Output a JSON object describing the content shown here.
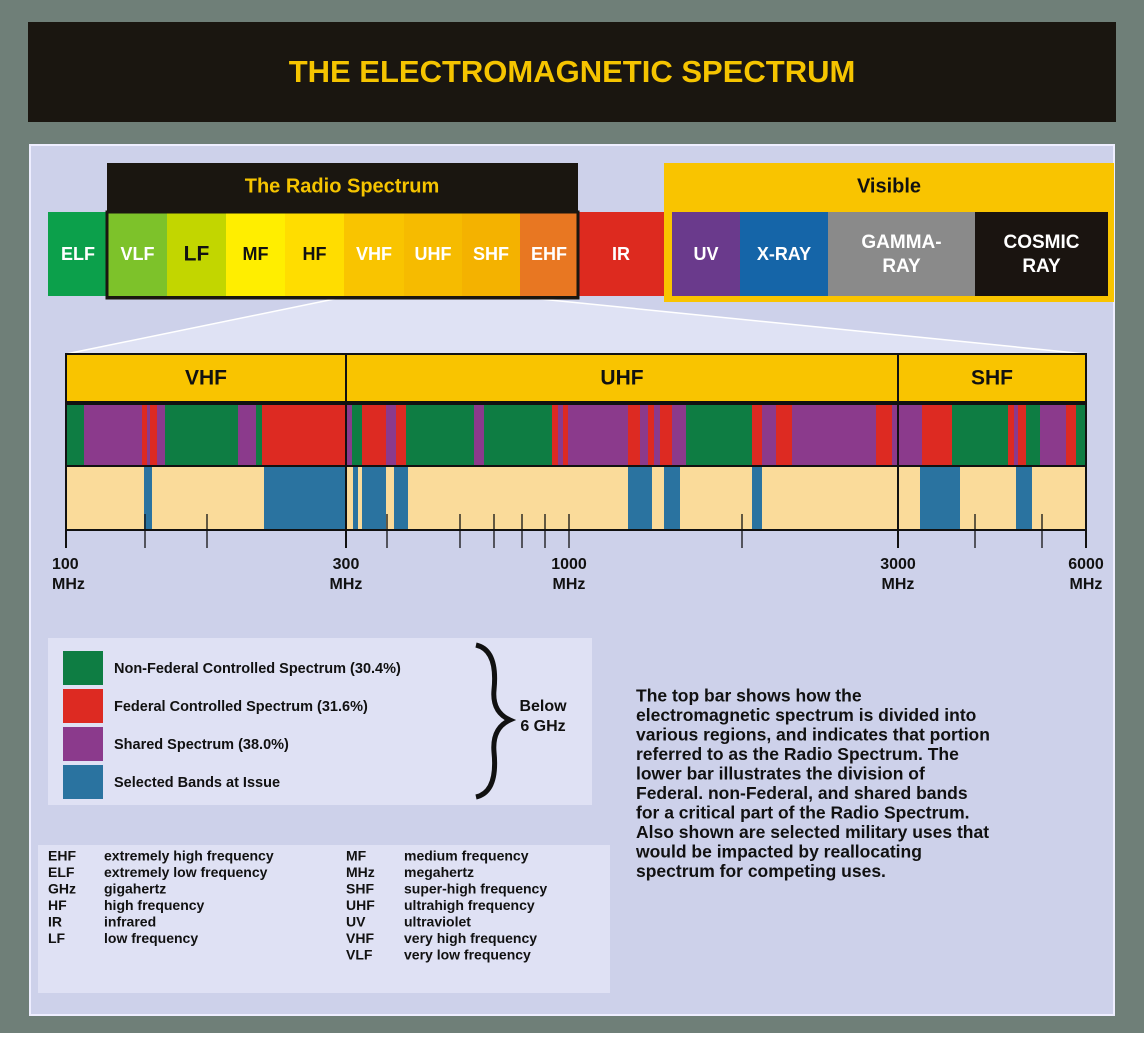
{
  "title": "THE ELECTROMAGNETIC SPECTRUM",
  "radio_label": "The Radio Spectrum",
  "visible_label": "Visible",
  "top_bands": [
    {
      "label": "ELF",
      "color": "#0ca04b"
    },
    {
      "label": "VLF",
      "color": "#7dc22a"
    },
    {
      "label": "LF",
      "color": "#c2d600"
    },
    {
      "label": "MF",
      "color": "#ffee00"
    },
    {
      "label": "HF",
      "color": "#ffdd00"
    },
    {
      "label": "VHF",
      "color": "#f9c400"
    },
    {
      "label": "UHF",
      "color": "#f6bb00"
    },
    {
      "label": "SHF",
      "color": "#f4b200"
    },
    {
      "label": "EHF",
      "color": "#e87722"
    },
    {
      "label": "IR",
      "color": "#dd2a1f"
    },
    {
      "label": "UV",
      "color": "#6a3a8c"
    },
    {
      "label": "X-RAY",
      "color": "#1565a8"
    },
    {
      "label": "GAMMA-RAY",
      "color": "#8a8a8a"
    },
    {
      "label": "COSMIC RAY",
      "color": "#1a1410"
    }
  ],
  "detail_bands": [
    "VHF",
    "UHF",
    "SHF"
  ],
  "axis_labels": [
    [
      "100",
      "MHz"
    ],
    [
      "300",
      "MHz"
    ],
    [
      "1000",
      "MHz"
    ],
    [
      "3000",
      "MHz"
    ],
    [
      "6000",
      "MHz"
    ]
  ],
  "legend": [
    {
      "label": "Non-Federal Controlled Spectrum (30.4%)",
      "color": "#0e7d43"
    },
    {
      "label": "Federal Controlled Spectrum (31.6%)",
      "color": "#dd2a22"
    },
    {
      "label": "Shared Spectrum (38.0%)",
      "color": "#8b3a8c"
    },
    {
      "label": "Selected Bands at Issue",
      "color": "#2a73a0"
    }
  ],
  "brace_label": [
    "Below",
    "6 GHz"
  ],
  "abbreviations": [
    [
      "EHF",
      "extremely high frequency"
    ],
    [
      "ELF",
      "extremely low frequency"
    ],
    [
      "GHz",
      "gigahertz"
    ],
    [
      "HF",
      "high frequency"
    ],
    [
      "IR",
      "infrared"
    ],
    [
      "LF",
      "low frequency"
    ],
    [
      "MF",
      "medium frequency"
    ],
    [
      "MHz",
      "megahertz"
    ],
    [
      "SHF",
      "super-high frequency"
    ],
    [
      "UHF",
      "ultrahigh frequency"
    ],
    [
      "UV",
      "ultraviolet"
    ],
    [
      "VHF",
      "very high frequency"
    ],
    [
      "VLF",
      "very low frequency"
    ]
  ],
  "description": [
    "The top bar shows how the",
    "electromagnetic spectrum is divided into",
    "various regions, and indicates that portion",
    "referred to as the Radio Spectrum.  The",
    "lower bar illustrates the division of",
    "Federal. non-Federal, and shared bands",
    "for a critical part of the Radio Spectrum.",
    "Also shown are selected military uses that",
    "would be impacted by reallocating",
    "spectrum for competing uses."
  ]
}
